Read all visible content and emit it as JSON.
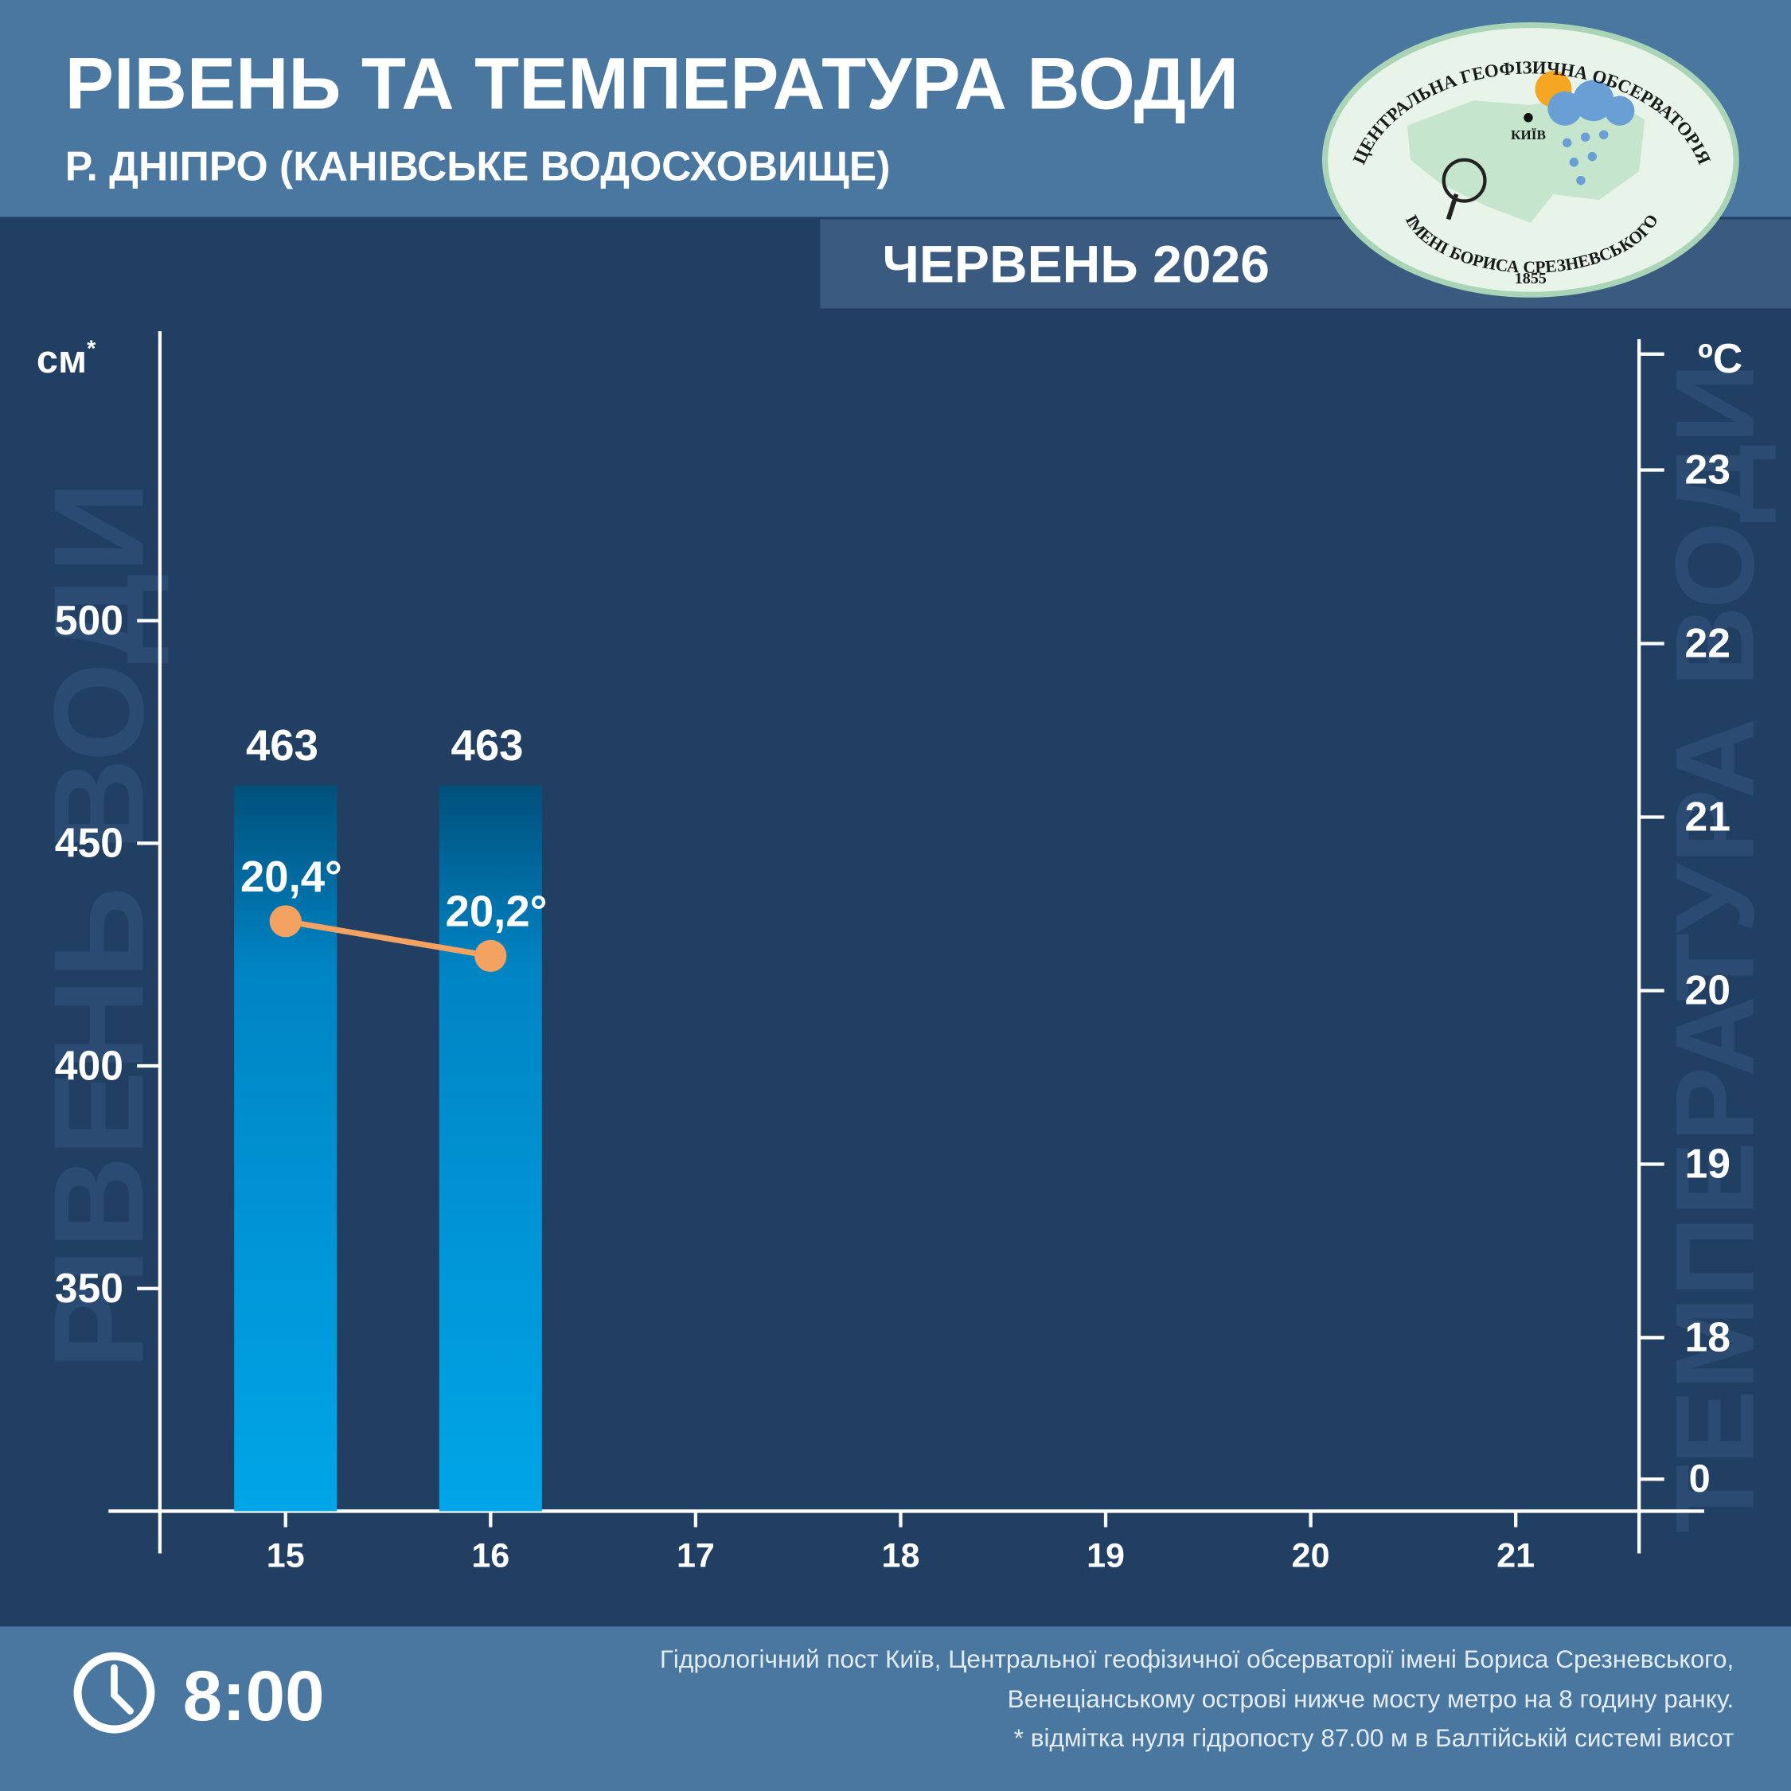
{
  "header": {
    "title": "РІВЕНЬ ТА ТЕМПЕРАТУРА ВОДИ",
    "subtitle": "Р. ДНІПРО (КАНІВСЬКЕ ВОДОСХОВИЩЕ)",
    "period": "ЧЕРВЕНЬ 2026"
  },
  "logo": {
    "top_text": "ЦЕНТРАЛЬНА ГЕОФІЗИЧНА ОБСЕРВАТОРІЯ",
    "bottom_text": "ІМЕНІ БОРИСА СРЕЗНЕВСЬКОГО",
    "year": "1855",
    "city": "КИЇВ"
  },
  "chart_data": {
    "type": "bar",
    "categories": [
      "15",
      "16",
      "17",
      "18",
      "19",
      "20",
      "21"
    ],
    "series": [
      {
        "name": "РІВЕНЬ ВОДИ",
        "type": "bar",
        "color": "#00a6e8",
        "values": [
          463,
          463,
          null,
          null,
          null,
          null,
          null
        ]
      },
      {
        "name": "ТЕМПЕРАТУРА ВОДИ",
        "type": "line",
        "axis": "y2",
        "color": "#f4a261",
        "values": [
          20.4,
          20.2,
          null,
          null,
          null,
          null,
          null
        ],
        "value_labels": [
          "20,4°",
          "20,2°",
          null,
          null,
          null,
          null,
          null
        ]
      }
    ],
    "y_unit": "см",
    "y_unit_note": "*",
    "y2_unit": "ºC",
    "ylim": [
      300,
      565
    ],
    "yticks": [
      350,
      400,
      450,
      500
    ],
    "y2lim": [
      17,
      23.8
    ],
    "y2ticks": [
      18,
      19,
      20,
      21,
      22,
      23
    ],
    "y2_break_label": "0"
  },
  "footer": {
    "time": "8:00",
    "notes": [
      "Гідрологічний пост Київ, Центральної геофізичної обсерваторії імені Бориса Срезневського,",
      "Венеціанському острові нижче мосту метро  на 8 годину ранку.",
      "* відмітка нуля гідропосту 87.00 м в Балтійській системі висот"
    ]
  }
}
